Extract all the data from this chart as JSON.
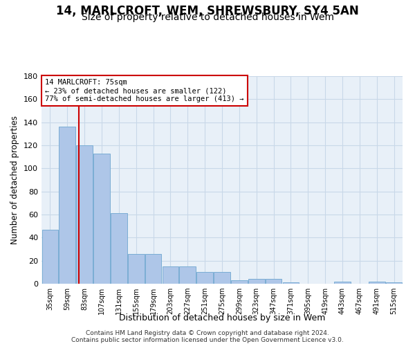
{
  "title": "14, MARLCROFT, WEM, SHREWSBURY, SY4 5AN",
  "subtitle": "Size of property relative to detached houses in Wem",
  "xlabel": "Distribution of detached houses by size in Wem",
  "ylabel": "Number of detached properties",
  "bar_values": [
    47,
    136,
    120,
    113,
    61,
    26,
    26,
    15,
    15,
    10,
    10,
    3,
    4,
    4,
    1,
    0,
    0,
    2,
    0,
    2,
    1
  ],
  "categories": [
    "35sqm",
    "59sqm",
    "83sqm",
    "107sqm",
    "131sqm",
    "155sqm",
    "179sqm",
    "203sqm",
    "227sqm",
    "251sqm",
    "275sqm",
    "299sqm",
    "323sqm",
    "347sqm",
    "371sqm",
    "395sqm",
    "419sqm",
    "443sqm",
    "467sqm",
    "491sqm",
    "515sqm"
  ],
  "bar_color": "#aec6e8",
  "bar_edge_color": "#7aadd4",
  "annotation_lines": [
    "14 MARLCROFT: 75sqm",
    "← 23% of detached houses are smaller (122)",
    "77% of semi-detached houses are larger (413) →"
  ],
  "annotation_box_color": "#ffffff",
  "annotation_box_edge_color": "#cc0000",
  "red_line_color": "#cc0000",
  "grid_color": "#c8d8e8",
  "background_color": "#e8f0f8",
  "ylim": [
    0,
    180
  ],
  "yticks": [
    0,
    20,
    40,
    60,
    80,
    100,
    120,
    140,
    160,
    180
  ],
  "footer1": "Contains HM Land Registry data © Crown copyright and database right 2024.",
  "footer2": "Contains public sector information licensed under the Open Government Licence v3.0.",
  "title_fontsize": 12,
  "subtitle_fontsize": 10,
  "xlabel_fontsize": 9,
  "ylabel_fontsize": 8.5
}
